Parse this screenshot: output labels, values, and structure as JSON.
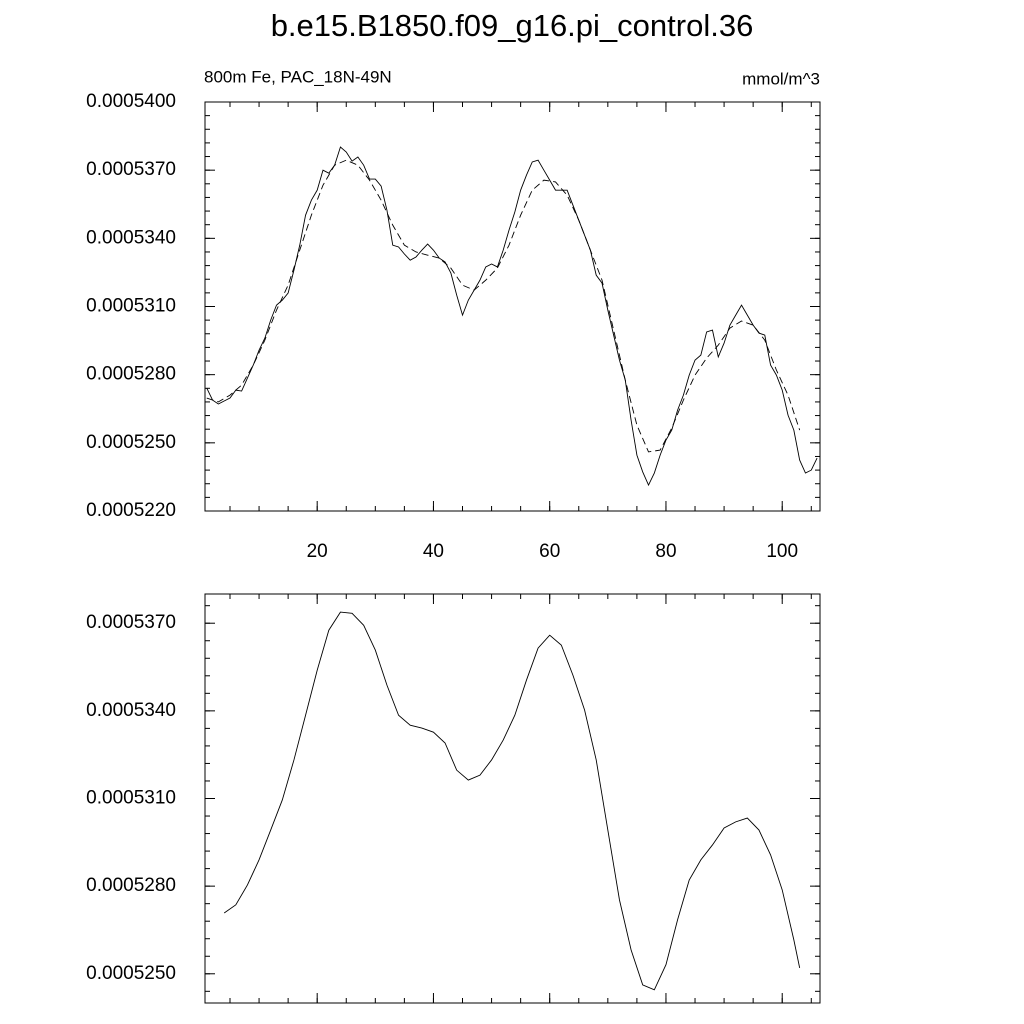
{
  "chart_data": [
    {
      "type": "line",
      "title": "b.e15.B1850.f09_g16.pi_control.36",
      "left_label": "800m Fe, PAC_18N-49N",
      "right_label": "mmol/m^3",
      "xlim": [
        0.7,
        106.5
      ],
      "xticks": [
        20,
        40,
        60,
        80,
        100
      ],
      "ylim": [
        0.000522,
        0.00054
      ],
      "yticks": [
        {
          "value": 0.000522,
          "label": "0.0005220"
        },
        {
          "value": 0.000525,
          "label": "0.0005250"
        },
        {
          "value": 0.000528,
          "label": "0.0005280"
        },
        {
          "value": 0.000531,
          "label": "0.0005310"
        },
        {
          "value": 0.000534,
          "label": "0.0005340"
        },
        {
          "value": 0.000537,
          "label": "0.0005370"
        },
        {
          "value": 0.00054,
          "label": "0.0005400"
        }
      ],
      "series": [
        {
          "color": "#000000",
          "line_style": "solid",
          "x": [
            1,
            2,
            3,
            4,
            5,
            6,
            7,
            8,
            9,
            10,
            11,
            12,
            13,
            14,
            15,
            16,
            17,
            18,
            19,
            20,
            21,
            22,
            23,
            24,
            25,
            26,
            27,
            28,
            29,
            30,
            31,
            32,
            33,
            34,
            35,
            36,
            37,
            38,
            39,
            40,
            41,
            42,
            43,
            44,
            45,
            46,
            47,
            48,
            49,
            50,
            51,
            52,
            53,
            54,
            55,
            56,
            57,
            58,
            59,
            60,
            61,
            62,
            63,
            64,
            65,
            66,
            67,
            68,
            69,
            70,
            71,
            72,
            73,
            74,
            75,
            76,
            77,
            78,
            79,
            80,
            81,
            82,
            83,
            84,
            85,
            86,
            87,
            88,
            89,
            90,
            91,
            92,
            93,
            94,
            95,
            96,
            97,
            98,
            99,
            100,
            101,
            102,
            103,
            104,
            105,
            106
          ],
          "values": [
            0.00052741,
            0.00052688,
            0.00052671,
            0.00052684,
            0.00052697,
            0.00052732,
            0.00052728,
            0.00052785,
            0.00052842,
            0.00052908,
            0.00052961,
            0.0005304,
            0.00053106,
            0.00053128,
            0.00053159,
            0.0005326,
            0.0005337,
            0.00053502,
            0.00053568,
            0.00053612,
            0.000537,
            0.00053687,
            0.00053722,
            0.00053802,
            0.0005378,
            0.0005374,
            0.00053758,
            0.00053722,
            0.00053661,
            0.00053661,
            0.0005363,
            0.00053524,
            0.0005337,
            0.00053362,
            0.00053331,
            0.00053304,
            0.00053318,
            0.00053348,
            0.00053375,
            0.00053348,
            0.00053313,
            0.00053296,
            0.00053247,
            0.0005315,
            0.00053062,
            0.00053128,
            0.00053172,
            0.00053216,
            0.00053274,
            0.00053287,
            0.00053274,
            0.00053348,
            0.00053436,
            0.00053516,
            0.00053612,
            0.00053678,
            0.00053736,
            0.00053744,
            0.000537,
            0.00053656,
            0.00053612,
            0.00053612,
            0.00053612,
            0.00053546,
            0.0005348,
            0.00053414,
            0.00053348,
            0.00053238,
            0.00053203,
            0.00053084,
            0.00052974,
            0.00052864,
            0.00052776,
            0.000526,
            0.00052446,
            0.00052372,
            0.00052314,
            0.00052367,
            0.00052446,
            0.00052512,
            0.00052556,
            0.00052644,
            0.0005271,
            0.00052798,
            0.00052864,
            0.00052886,
            0.00052988,
            0.00052996,
            0.00052878,
            0.00052939,
            0.00053018,
            0.00053062,
            0.00053106,
            0.00053062,
            0.00053018,
            0.00052983,
            0.00052974,
            0.00052842,
            0.00052798,
            0.00052732,
            0.00052622,
            0.00052556,
            0.00052424,
            0.00052367,
            0.0005238,
            0.00052433
          ]
        },
        {
          "color": "#000000",
          "line_style": "dashed",
          "x": [
            1,
            3,
            5,
            7,
            9,
            11,
            13,
            15,
            17,
            19,
            21,
            23,
            25,
            27,
            29,
            31,
            33,
            35,
            37,
            39,
            41,
            43,
            45,
            47,
            49,
            51,
            53,
            55,
            57,
            59,
            61,
            63,
            65,
            67,
            69,
            71,
            73,
            75,
            77,
            79,
            81,
            83,
            85,
            87,
            89,
            91,
            93,
            95,
            97,
            99,
            101,
            103
          ],
          "values": [
            0.00052697,
            0.0005268,
            0.0005271,
            0.00052754,
            0.00052842,
            0.00052952,
            0.00053084,
            0.00053194,
            0.00053348,
            0.00053502,
            0.00053634,
            0.00053722,
            0.00053744,
            0.00053722,
            0.00053656,
            0.00053568,
            0.00053458,
            0.0005337,
            0.0005334,
            0.00053326,
            0.00053313,
            0.00053269,
            0.00053194,
            0.00053172,
            0.00053216,
            0.00053269,
            0.0005337,
            0.00053502,
            0.00053612,
            0.00053656,
            0.00053648,
            0.0005359,
            0.0005348,
            0.00053348,
            0.00053216,
            0.00052996,
            0.00052776,
            0.00052578,
            0.0005246,
            0.00052468,
            0.00052565,
            0.00052688,
            0.00052798,
            0.00052873,
            0.0005293,
            0.00053005,
            0.00053036,
            0.00053018,
            0.00052952,
            0.0005282,
            0.0005271,
            0.00052556
          ]
        }
      ]
    },
    {
      "type": "line",
      "xlim": [
        0.7,
        106.5
      ],
      "xticks": [
        20,
        40,
        60,
        80,
        100
      ],
      "ylim": [
        0.000524,
        0.000538
      ],
      "yticks": [
        {
          "value": 0.000525,
          "label": "0.0005250"
        },
        {
          "value": 0.000528,
          "label": "0.0005280"
        },
        {
          "value": 0.000531,
          "label": "0.0005310"
        },
        {
          "value": 0.000534,
          "label": "0.0005340"
        },
        {
          "value": 0.000537,
          "label": "0.0005370"
        }
      ],
      "series": [
        {
          "color": "#000000",
          "line_style": "solid",
          "x": [
            4,
            6,
            8,
            10,
            12,
            14,
            16,
            18,
            20,
            22,
            24,
            26,
            28,
            30,
            32,
            34,
            36,
            38,
            40,
            42,
            44,
            46,
            48,
            50,
            52,
            54,
            56,
            58,
            60,
            62,
            64,
            66,
            68,
            70,
            72,
            74,
            76,
            78,
            80,
            82,
            84,
            86,
            88,
            90,
            92,
            94,
            96,
            98,
            100,
            102,
            103
          ],
          "values": [
            0.00052708,
            0.00052736,
            0.00052804,
            0.0005289,
            0.00052992,
            0.00053095,
            0.00053232,
            0.00053385,
            0.00053539,
            0.00053676,
            0.00053738,
            0.00053734,
            0.00053693,
            0.00053608,
            0.00053488,
            0.00053385,
            0.00053351,
            0.00053341,
            0.00053327,
            0.0005329,
            0.00053197,
            0.00053163,
            0.0005318,
            0.00053232,
            0.000533,
            0.00053385,
            0.00053505,
            0.00053615,
            0.00053659,
            0.00053625,
            0.00053522,
            0.00053403,
            0.00053232,
            0.00052992,
            0.00052753,
            0.00052582,
            0.00052462,
            0.00052445,
            0.00052531,
            0.00052685,
            0.00052821,
            0.0005289,
            0.00052941,
            0.00052999,
            0.0005302,
            0.00053033,
            0.00052992,
            0.00052907,
            0.00052787,
            0.00052616,
            0.0005252
          ]
        }
      ]
    }
  ]
}
